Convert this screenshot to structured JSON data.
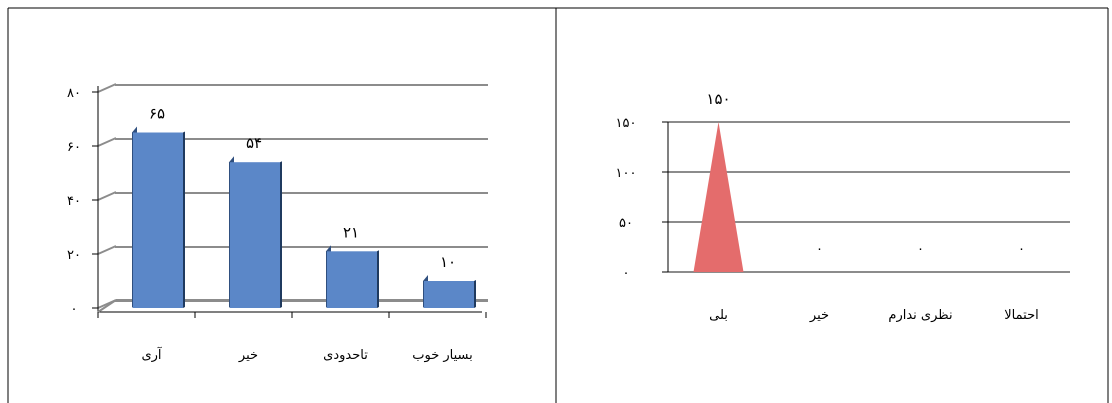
{
  "chart_data": [
    {
      "type": "bar",
      "categories": [
        "آری",
        "خیر",
        "تاحدودی",
        "بسیار خوب"
      ],
      "values": [
        65,
        54,
        21,
        10
      ],
      "data_labels": [
        "۶۵",
        "۵۴",
        "۲۱",
        "۱۰"
      ],
      "y_ticks": [
        {
          "value": 0,
          "label": "۰"
        },
        {
          "value": 20,
          "label": "۲۰"
        },
        {
          "value": 40,
          "label": "۴۰"
        },
        {
          "value": 60,
          "label": "۶۰"
        },
        {
          "value": 80,
          "label": "۸۰"
        }
      ],
      "ylim": [
        0,
        80
      ],
      "grid": true,
      "style": "3d-column",
      "colors": {
        "bar_front": "#5b87c8",
        "bar_side": "#2f4f7f",
        "grid": "#8c8c8c"
      }
    },
    {
      "type": "area",
      "categories": [
        "بلی",
        "خیر",
        "نظری ندارم",
        "احتمالا"
      ],
      "values": [
        150,
        0,
        0,
        0
      ],
      "data_labels": [
        "۱۵۰",
        "۰",
        "۰",
        "۰"
      ],
      "y_ticks": [
        {
          "value": 0,
          "label": "۰"
        },
        {
          "value": 50,
          "label": "۵۰"
        },
        {
          "value": 100,
          "label": "۱۰۰"
        },
        {
          "value": 150,
          "label": "۱۵۰"
        }
      ],
      "ylim": [
        0,
        150
      ],
      "grid": true,
      "style": "cone",
      "colors": {
        "fill": "#e46c6c",
        "grid": "#8c8c8c"
      }
    }
  ]
}
